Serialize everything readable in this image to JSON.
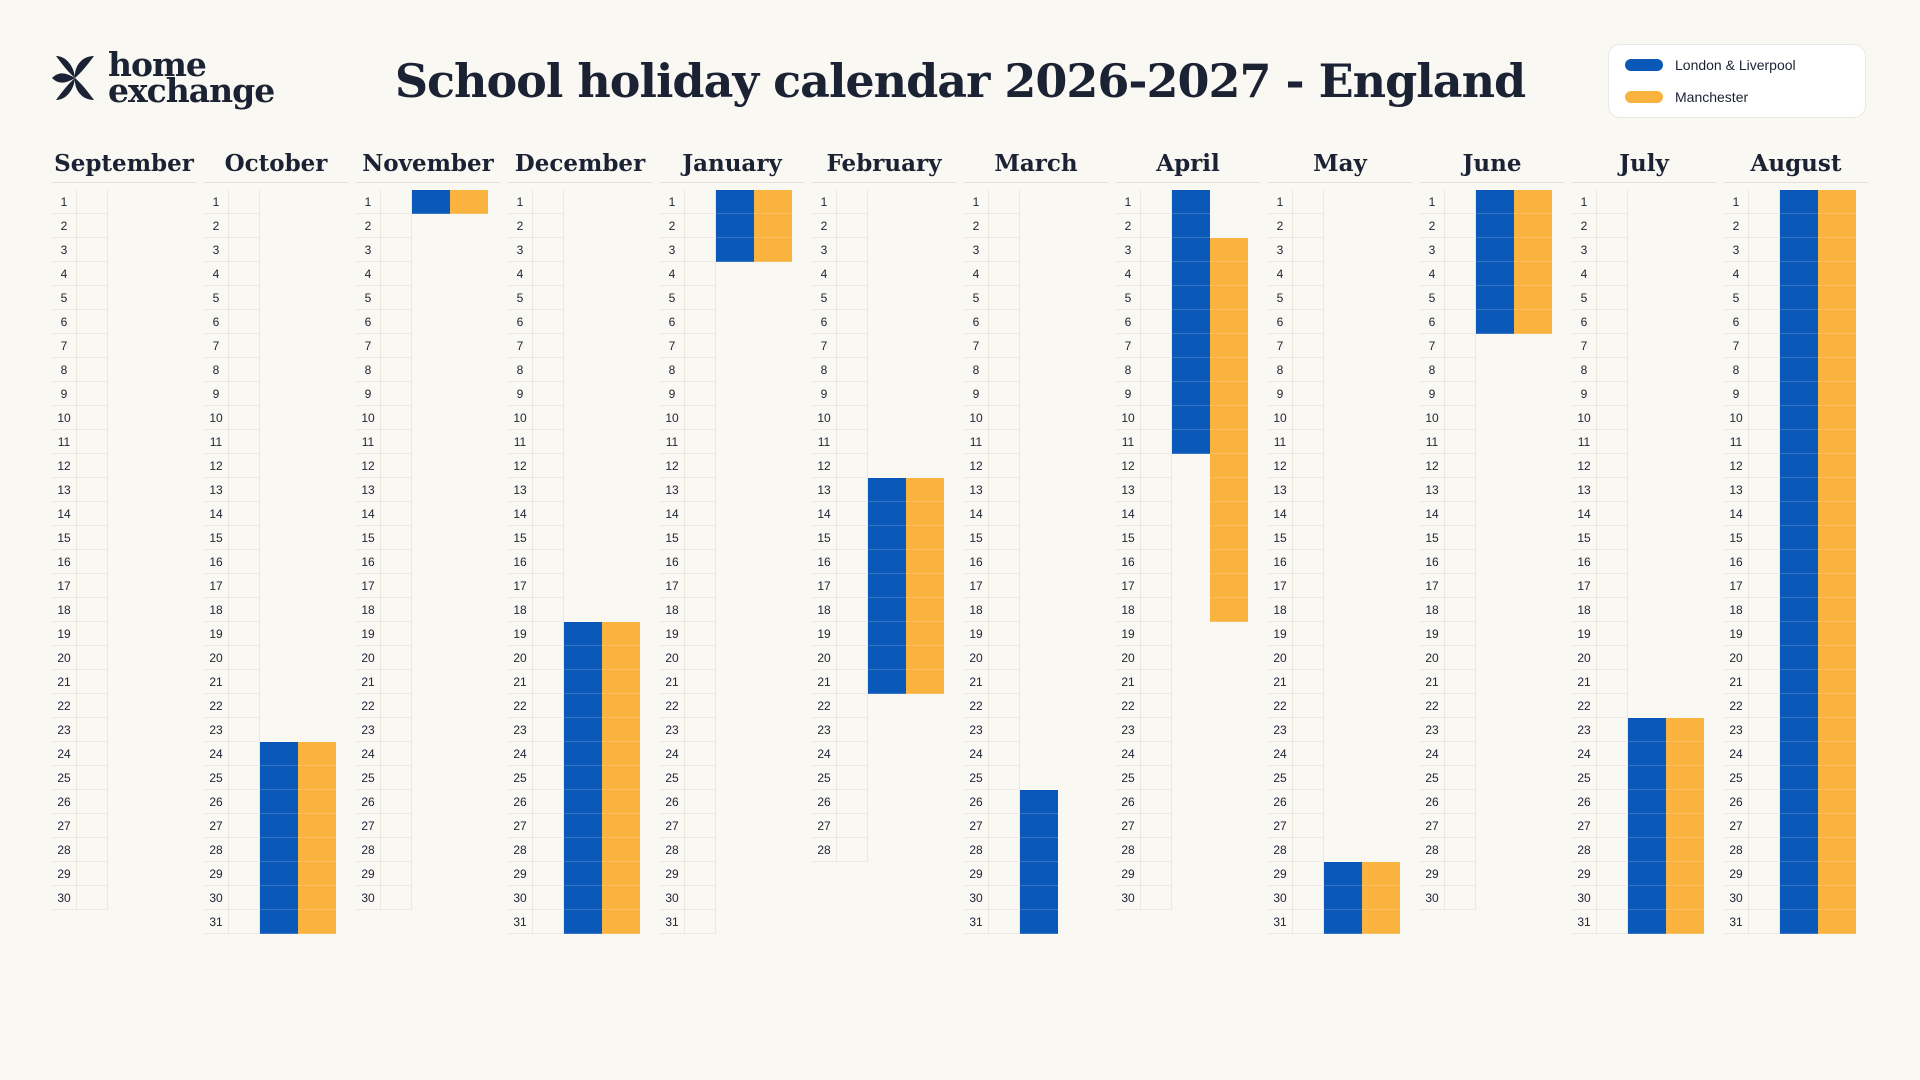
{
  "logo": {
    "line1": "home",
    "line2": "exchange"
  },
  "title": "School holiday calendar 2026-2027 - England",
  "legend": [
    {
      "label": "London & Liverpool",
      "color": "#0a58b7"
    },
    {
      "label": "Manchester",
      "color": "#fbb33f"
    }
  ],
  "chart_data": {
    "type": "table",
    "months": [
      {
        "name": "September",
        "days": 30,
        "holidays": {
          "london_liverpool": [],
          "manchester": []
        }
      },
      {
        "name": "October",
        "days": 31,
        "holidays": {
          "london_liverpool": [
            [
              24,
              31
            ]
          ],
          "manchester": [
            [
              24,
              31
            ]
          ]
        }
      },
      {
        "name": "November",
        "days": 30,
        "holidays": {
          "london_liverpool": [
            [
              1,
              1
            ]
          ],
          "manchester": [
            [
              1,
              1
            ]
          ]
        }
      },
      {
        "name": "December",
        "days": 31,
        "holidays": {
          "london_liverpool": [
            [
              19,
              31
            ]
          ],
          "manchester": [
            [
              19,
              31
            ]
          ]
        }
      },
      {
        "name": "January",
        "days": 31,
        "holidays": {
          "london_liverpool": [
            [
              1,
              3
            ]
          ],
          "manchester": [
            [
              1,
              3
            ]
          ]
        }
      },
      {
        "name": "February",
        "days": 28,
        "holidays": {
          "london_liverpool": [
            [
              13,
              21
            ]
          ],
          "manchester": [
            [
              13,
              21
            ]
          ]
        }
      },
      {
        "name": "March",
        "days": 31,
        "holidays": {
          "london_liverpool": [
            [
              26,
              31
            ]
          ],
          "manchester": []
        }
      },
      {
        "name": "April",
        "days": 30,
        "holidays": {
          "london_liverpool": [
            [
              1,
              11
            ]
          ],
          "manchester": [
            [
              3,
              18
            ]
          ]
        }
      },
      {
        "name": "May",
        "days": 31,
        "holidays": {
          "london_liverpool": [
            [
              29,
              31
            ]
          ],
          "manchester": [
            [
              29,
              31
            ]
          ]
        }
      },
      {
        "name": "June",
        "days": 30,
        "holidays": {
          "london_liverpool": [
            [
              1,
              6
            ]
          ],
          "manchester": [
            [
              1,
              6
            ]
          ]
        }
      },
      {
        "name": "July",
        "days": 31,
        "holidays": {
          "london_liverpool": [
            [
              23,
              31
            ]
          ],
          "manchester": [
            [
              23,
              31
            ]
          ]
        }
      },
      {
        "name": "August",
        "days": 31,
        "holidays": {
          "london_liverpool": [
            [
              1,
              31
            ]
          ],
          "manchester": [
            [
              1,
              31
            ]
          ]
        }
      }
    ]
  }
}
